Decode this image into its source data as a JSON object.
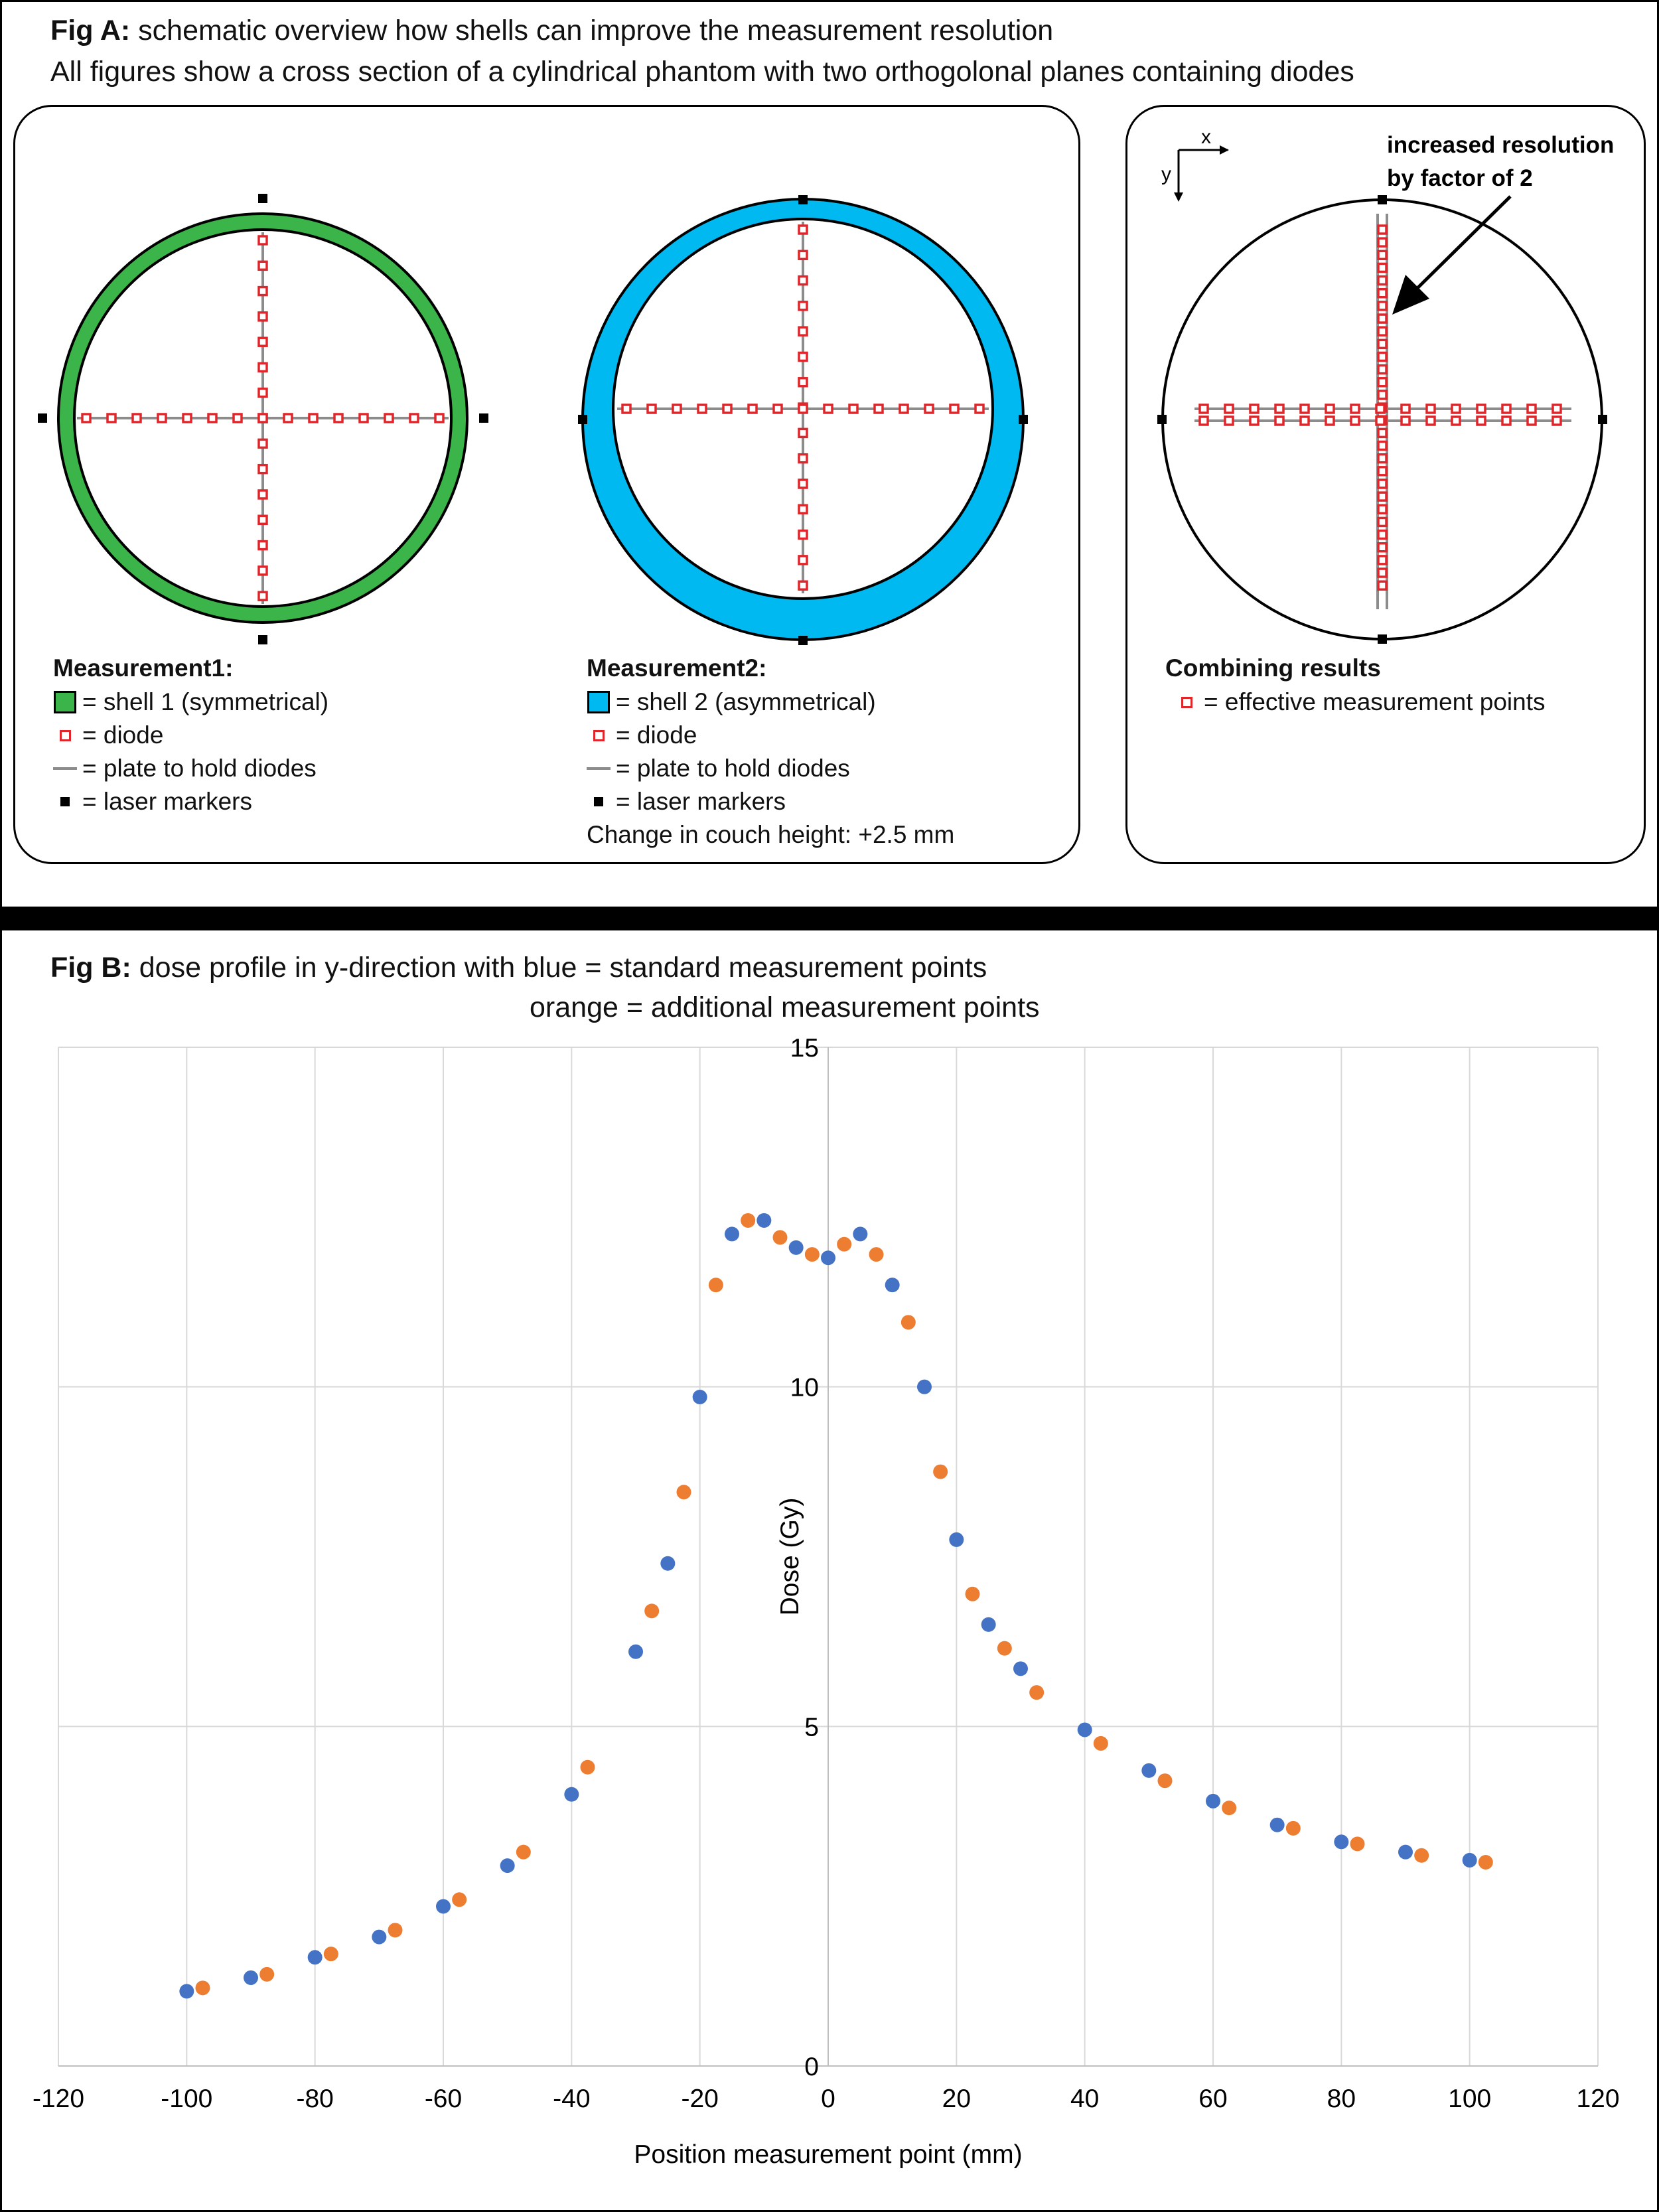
{
  "fig_a": {
    "title_bold": "Fig A:",
    "title_rest": " schematic overview how shells can improve the measurement resolution",
    "subtitle": "All figures show a cross section of a cylindrical phantom with two orthogolonal planes containing diodes",
    "measurement1": {
      "heading": "Measurement1:",
      "items": [
        "= shell 1 (symmetrical)",
        "= diode",
        "= plate to hold diodes",
        "= laser markers"
      ],
      "shell_color": "#3bb44a"
    },
    "measurement2": {
      "heading": "Measurement2:",
      "items": [
        "= shell 2 (asymmetrical)",
        "= diode",
        "= plate to hold diodes",
        "= laser markers"
      ],
      "note": "Change in couch height: +2.5 mm",
      "shell_color": "#00b9f0"
    },
    "combining": {
      "heading": "Combining results",
      "item": "= effective measurement points",
      "annotation_line1": "increased resolution",
      "annotation_line2": "by factor of 2",
      "axis_x": "x",
      "axis_y": "y"
    },
    "colors": {
      "diode": "#e0262b",
      "plate": "#8c8c8c",
      "marker": "#000000"
    }
  },
  "fig_b": {
    "title_bold": "Fig B:",
    "title_rest": " dose profile in y-direction with blue = standard measurement points",
    "title_line2": "orange = additional measurement points"
  },
  "chart_data": {
    "type": "scatter",
    "title": "",
    "xlabel": "Position measurement point (mm)",
    "ylabel": "Dose (Gy)",
    "xlim": [
      -120,
      120
    ],
    "ylim": [
      0,
      15
    ],
    "xticks": [
      -120,
      -100,
      -80,
      -60,
      -40,
      -20,
      0,
      20,
      40,
      60,
      80,
      100,
      120
    ],
    "yticks": [
      0,
      5,
      10,
      15
    ],
    "grid": true,
    "legend": "none",
    "series": [
      {
        "color": "#4472c4",
        "points": [
          [
            -100,
            1.1
          ],
          [
            -90,
            1.3
          ],
          [
            -80,
            1.6
          ],
          [
            -70,
            1.9
          ],
          [
            -60,
            2.35
          ],
          [
            -50,
            2.95
          ],
          [
            -40,
            4.0
          ],
          [
            -30,
            6.1
          ],
          [
            -25,
            7.4
          ],
          [
            -20,
            9.85
          ],
          [
            -15,
            12.25
          ],
          [
            -10,
            12.45
          ],
          [
            -5,
            12.05
          ],
          [
            0,
            11.9
          ],
          [
            5,
            12.25
          ],
          [
            10,
            11.5
          ],
          [
            15,
            10.0
          ],
          [
            20,
            7.75
          ],
          [
            25,
            6.5
          ],
          [
            30,
            5.85
          ],
          [
            40,
            4.95
          ],
          [
            50,
            4.35
          ],
          [
            60,
            3.9
          ],
          [
            70,
            3.55
          ],
          [
            80,
            3.3
          ],
          [
            90,
            3.15
          ],
          [
            100,
            3.03
          ]
        ]
      },
      {
        "color": "#ed7d31",
        "points": [
          [
            -97.5,
            1.15
          ],
          [
            -87.5,
            1.35
          ],
          [
            -77.5,
            1.65
          ],
          [
            -67.5,
            2.0
          ],
          [
            -57.5,
            2.45
          ],
          [
            -47.5,
            3.15
          ],
          [
            -37.5,
            4.4
          ],
          [
            -27.5,
            6.7
          ],
          [
            -22.5,
            8.45
          ],
          [
            -17.5,
            11.5
          ],
          [
            -12.5,
            12.45
          ],
          [
            -7.5,
            12.2
          ],
          [
            -2.5,
            11.95
          ],
          [
            2.5,
            12.1
          ],
          [
            7.5,
            11.95
          ],
          [
            12.5,
            10.95
          ],
          [
            17.5,
            8.75
          ],
          [
            22.5,
            6.95
          ],
          [
            27.5,
            6.15
          ],
          [
            32.5,
            5.5
          ],
          [
            42.5,
            4.75
          ],
          [
            52.5,
            4.2
          ],
          [
            62.5,
            3.8
          ],
          [
            72.5,
            3.5
          ],
          [
            82.5,
            3.27
          ],
          [
            92.5,
            3.1
          ],
          [
            102.5,
            3.0
          ]
        ]
      }
    ]
  }
}
